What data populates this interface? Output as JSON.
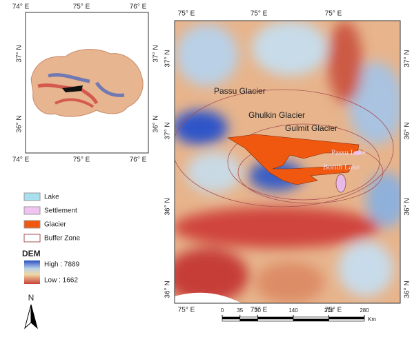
{
  "inset": {
    "top_labels": [
      "74° E",
      "75° E",
      "76° E"
    ],
    "bottom_labels": [
      "74° E",
      "75° E",
      "76° E"
    ],
    "left_labels": [
      "37° N",
      "36° N"
    ],
    "right_labels": [
      "37° N",
      "36° N"
    ]
  },
  "main": {
    "top_labels": [
      "75° E",
      "75° E",
      "75° E"
    ],
    "bottom_labels": [
      "75° E",
      "75° E",
      "75° E"
    ],
    "left_labels": [
      "37° N",
      "37° N",
      "36° N",
      "36° N"
    ],
    "right_labels": [
      "37° N",
      "36° N",
      "36° N",
      "36° N"
    ],
    "annotations": [
      "Passu Glacier",
      "Ghulkin Glacier",
      "Gulmit Glacier",
      "Passu Lake",
      "Borith Lake"
    ]
  },
  "legend": {
    "items": [
      "Lake",
      "Settlement",
      "Glacier",
      "Buffer Zone"
    ],
    "dem_title": "DEM",
    "high": "High : 7889",
    "low": "Low : 1662"
  },
  "north": "N",
  "scale": {
    "ticks": [
      0,
      35,
      70,
      140,
      210,
      280
    ],
    "unit": "Km"
  }
}
